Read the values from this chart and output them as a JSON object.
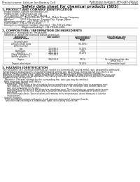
{
  "title": "Safety data sheet for chemical products (SDS)",
  "header_left": "Product name: Lithium Ion Battery Cell",
  "header_right_line1": "Reference number: SPS-049-00010",
  "header_right_line2": "Established / Revision: Dec.7.2016",
  "section1_title": "1. PRODUCT AND COMPANY IDENTIFICATION",
  "section1_lines": [
    "· Product name: Lithium Ion Battery Cell",
    "· Product code: Cylindrical-type cell",
    "   IHR-18650U, IHR-18650, IHR-18650A",
    "· Company name:   Sanyo Electric Co., Ltd., Mobile Energy Company",
    "· Address:         2001 Kamiaiman, Sumoto-City, Hyogo, Japan",
    "· Telephone number:  +81-(799)-20-4111",
    "· Fax number:  +81-1799-26-4129",
    "· Emergency telephone number (daytime): +81-799-20-2662",
    "                           (Night and holiday): +81-799-26-4101"
  ],
  "section2_title": "2. COMPOSITION / INFORMATION ON INGREDIENTS",
  "section2_intro": "· Substance or preparation: Preparation",
  "section2_sub": "· Information about the chemical nature of product:",
  "table_headers": [
    "Component/chemical name",
    "CAS number",
    "Concentration /\nConcentration range",
    "Classification and\nhazard labeling"
  ],
  "table_rows": [
    [
      "Several name",
      "",
      "",
      ""
    ],
    [
      "Lithium cobalt oxide\n(LiMn+Co+O2)",
      "",
      "(30-60%)",
      ""
    ],
    [
      "Iron",
      "7439-89-6",
      "15-25%",
      ""
    ],
    [
      "Aluminium",
      "7429-90-5",
      "2-5%",
      ""
    ],
    [
      "Graphite\n(Flake or graphite-1)\n(ArtMor graphite-1)",
      "7782-42-5\n7782-44-0",
      "10-25%",
      ""
    ],
    [
      "Copper",
      "7440-50-8",
      "5-15%",
      "Sensitization of the skin\ngroup R42.2"
    ],
    [
      "Organic electrolyte",
      "",
      "10-25%",
      "Inflammable liquid"
    ]
  ],
  "section3_title": "3. HAZARDS IDENTIFICATION",
  "section3_para": [
    "For the battery cell, chemical materials are stored in a hermetically sealed metal case, designed to withstand",
    "temperatures and pressures encountered during normal use. As a result, during normal use, there is no",
    "physical danger of ignition or explosion and therefore danger of hazardous materials leakage.",
    "However, if exposed to a fire, added mechanical shocks, decompose, strong electric shock or by miss-use,",
    "the gas release valve can be operated. The battery cell case will be breached of fire-particles, hazardous",
    "materials may be released.",
    "   Moreover, if heated strongly by the surrounding fire, ionic gas may be emitted."
  ],
  "section3_bullet1": "· Most important hazard and effects:",
  "section3_human_title": "   Human health effects:",
  "section3_human_lines": [
    "      Inhalation: The release of the electrolyte has an anesthesia action and stimulates in respiratory tract.",
    "      Skin contact: The release of the electrolyte stimulates a skin. The electrolyte skin contact causes a",
    "      sore and stimulation on the skin.",
    "      Eye contact: The release of the electrolyte stimulates eyes. The electrolyte eye contact causes a sore",
    "      and stimulation on the eye. Especially, substances that causes a strong inflammation of the eyes is",
    "      contained.",
    "      Environmental effects: Since a battery cell remains in the environment, do not throw out it into the",
    "      environment."
  ],
  "section3_specific": "· Specific hazards:",
  "section3_specific_lines": [
    "   If the electrolyte contacts with water, it will generate detrimental hydrogen fluoride.",
    "   Since the neat electrolyte is inflammable liquid, do not bring close to fire."
  ],
  "bg_color": "#ffffff",
  "text_color": "#1a1a1a",
  "line_color": "#999999",
  "table_line_color": "#aaaaaa"
}
